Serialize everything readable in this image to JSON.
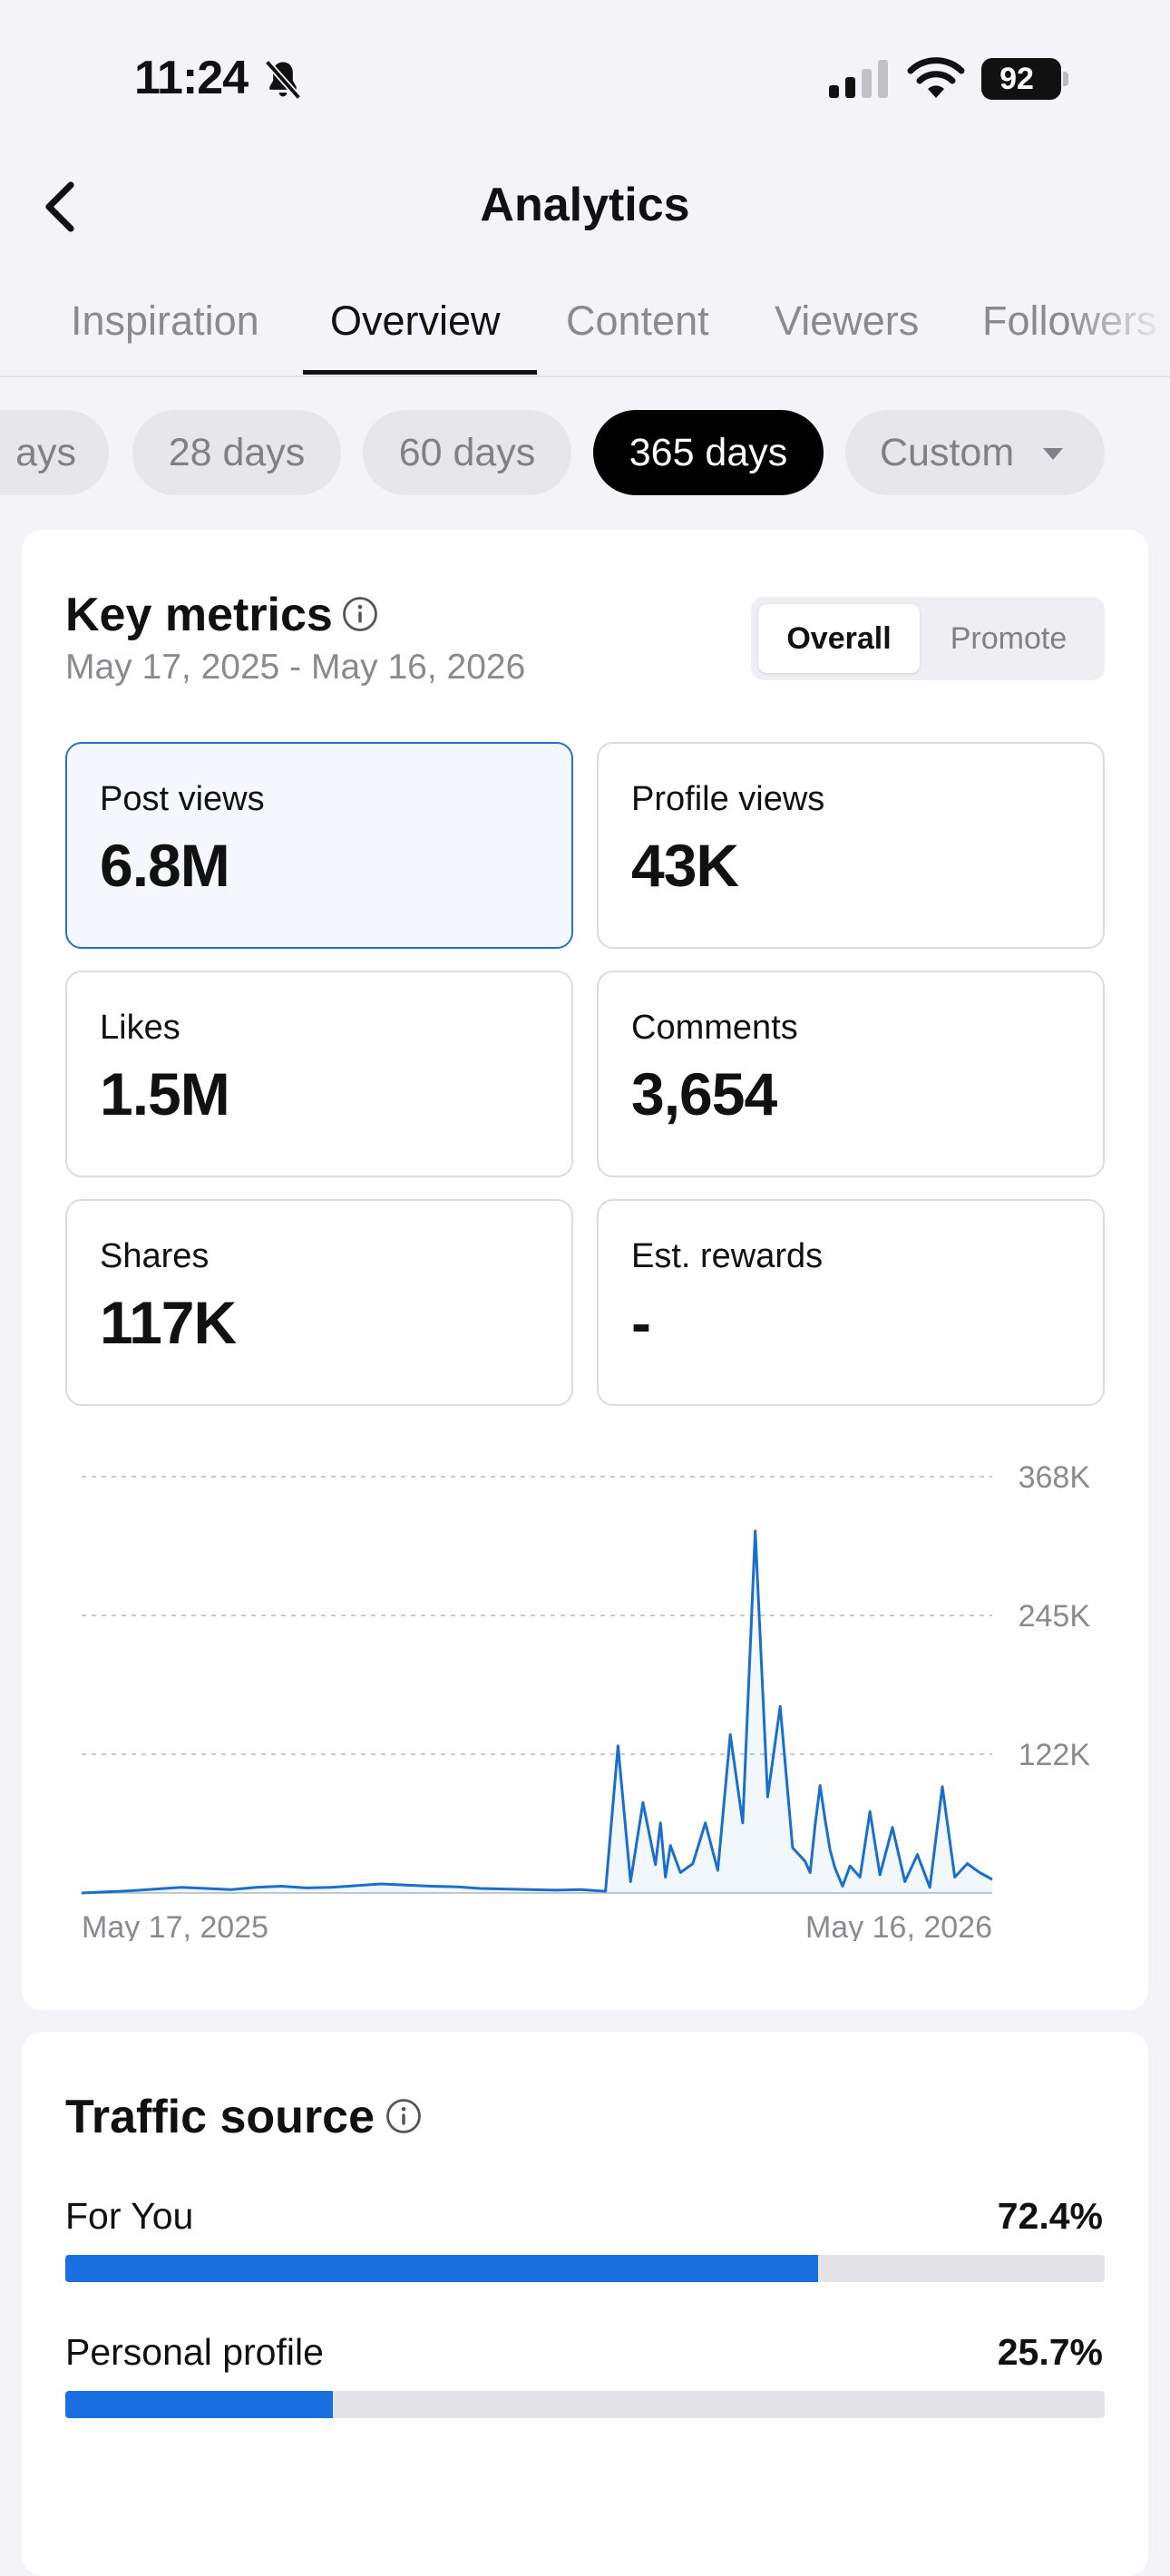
{
  "status_bar": {
    "time": "11:24",
    "battery": "92"
  },
  "header": {
    "title": "Analytics"
  },
  "tabs": [
    {
      "label": "Inspiration",
      "active": false
    },
    {
      "label": "Overview",
      "active": true
    },
    {
      "label": "Content",
      "active": false
    },
    {
      "label": "Viewers",
      "active": false
    },
    {
      "label": "Followers",
      "active": false
    }
  ],
  "ranges": {
    "cut": "ays",
    "days28": "28 days",
    "days60": "60 days",
    "days365": "365 days",
    "custom": "Custom",
    "selected": "365 days"
  },
  "key_metrics": {
    "title": "Key metrics",
    "date_range": "May 17, 2025 - May 16, 2026",
    "toggle": {
      "overall": "Overall",
      "promote": "Promote"
    },
    "metrics": [
      {
        "label": "Post views",
        "value": "6.8M"
      },
      {
        "label": "Profile views",
        "value": "43K"
      },
      {
        "label": "Likes",
        "value": "1.5M"
      },
      {
        "label": "Comments",
        "value": "3,654"
      },
      {
        "label": "Shares",
        "value": "117K"
      },
      {
        "label": "Est. rewards",
        "value": "-"
      }
    ]
  },
  "chart_data": {
    "type": "line",
    "title": "",
    "y_ticks": [
      "368K",
      "245K",
      "122K"
    ],
    "y_tick_values": [
      368000,
      245000,
      122000
    ],
    "ylim": [
      0,
      368000
    ],
    "x_labels": [
      "May 17, 2025",
      "May 16, 2026"
    ],
    "grid": true,
    "color": "#1a6fce",
    "series": [
      {
        "x": [
          0,
          10,
          20,
          30,
          40,
          50,
          60,
          70,
          80,
          90,
          100,
          110,
          120,
          130,
          140,
          150,
          160,
          170,
          180,
          190,
          200,
          210,
          215,
          220,
          225,
          230,
          232,
          234,
          236,
          240,
          245,
          250,
          255,
          260,
          265,
          270,
          275,
          280,
          285,
          290,
          292,
          294,
          296,
          298,
          300,
          302,
          305,
          308,
          312,
          316,
          320,
          325,
          330,
          335,
          340,
          345,
          350,
          355,
          360,
          365
        ],
        "y": [
          0,
          1000,
          2000,
          3500,
          5000,
          4000,
          3000,
          5000,
          6000,
          4500,
          5000,
          6500,
          8000,
          7000,
          6000,
          5500,
          4000,
          3500,
          3000,
          2500,
          3000,
          1500,
          130000,
          10000,
          80000,
          25000,
          62000,
          14000,
          42000,
          18000,
          26000,
          62000,
          20000,
          140000,
          62000,
          320000,
          85000,
          165000,
          40000,
          28000,
          18000,
          60000,
          95000,
          65000,
          38000,
          22000,
          6000,
          24000,
          14000,
          72000,
          16000,
          58000,
          10000,
          34000,
          5000,
          94000,
          14000,
          26000,
          18000,
          12000
        ]
      }
    ]
  },
  "traffic_source": {
    "title": "Traffic source",
    "items": [
      {
        "label": "For You",
        "pct": "72.4%",
        "value": 0.724
      },
      {
        "label": "Personal profile",
        "pct": "25.7%",
        "value": 0.257
      }
    ]
  }
}
